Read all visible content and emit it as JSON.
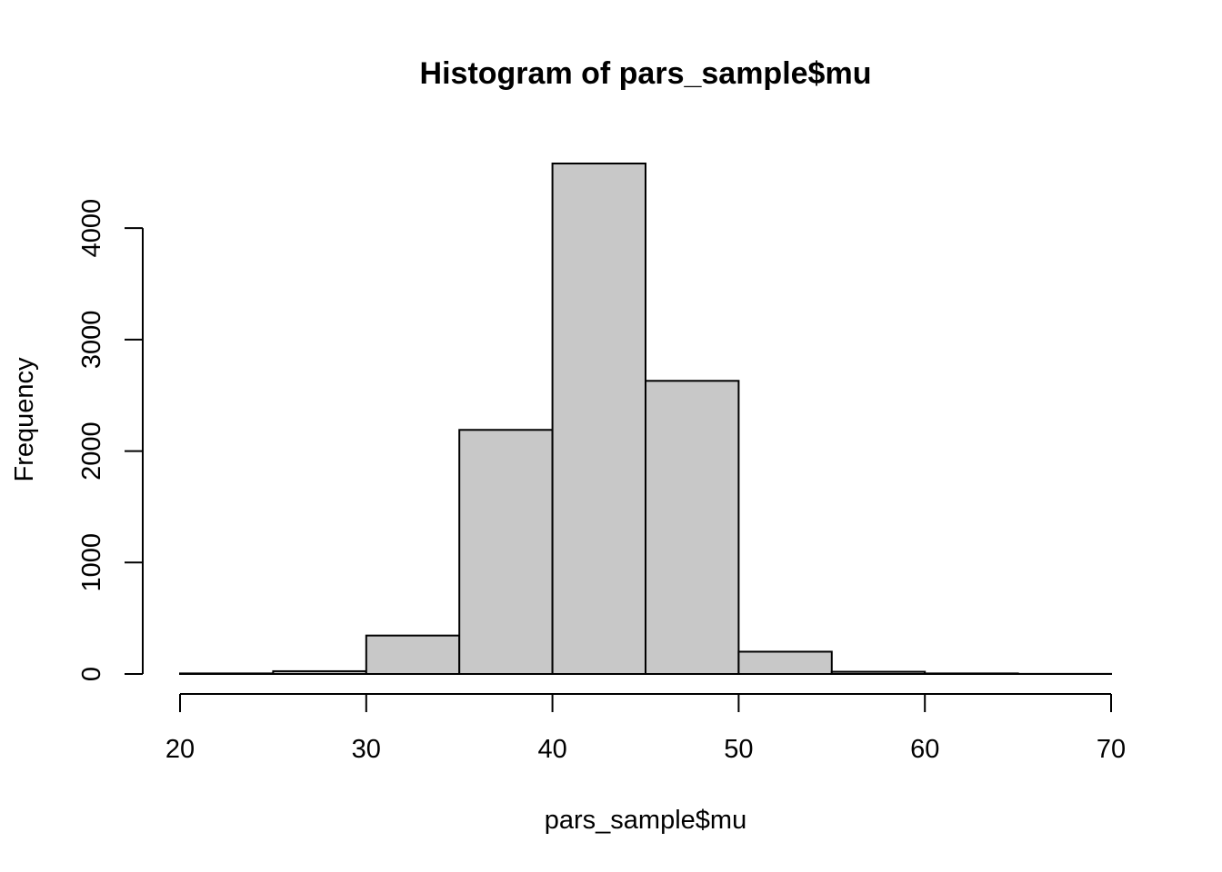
{
  "chart_data": {
    "type": "bar",
    "title": "Histogram of pars_sample$mu",
    "xlabel": "pars_sample$mu",
    "ylabel": "Frequency",
    "bins": [
      {
        "start": 20,
        "end": 25,
        "value": 5
      },
      {
        "start": 25,
        "end": 30,
        "value": 25
      },
      {
        "start": 30,
        "end": 35,
        "value": 345
      },
      {
        "start": 35,
        "end": 40,
        "value": 2190
      },
      {
        "start": 40,
        "end": 45,
        "value": 4580
      },
      {
        "start": 45,
        "end": 50,
        "value": 2630
      },
      {
        "start": 50,
        "end": 55,
        "value": 200
      },
      {
        "start": 55,
        "end": 60,
        "value": 20
      },
      {
        "start": 60,
        "end": 65,
        "value": 5
      },
      {
        "start": 65,
        "end": 70,
        "value": 1
      }
    ],
    "xlim": [
      20,
      70
    ],
    "ylim": [
      0,
      4580
    ],
    "x_ticks": [
      20,
      30,
      40,
      50,
      60,
      70
    ],
    "x_tick_labels": [
      "20",
      "30",
      "40",
      "50",
      "60",
      "70"
    ],
    "y_ticks": [
      0,
      1000,
      2000,
      3000,
      4000
    ],
    "y_tick_labels": [
      "0",
      "1000",
      "2000",
      "3000",
      "4000"
    ],
    "grid": false,
    "bar_color": "#c8c8c8",
    "bar_edge_color": "#000000"
  }
}
